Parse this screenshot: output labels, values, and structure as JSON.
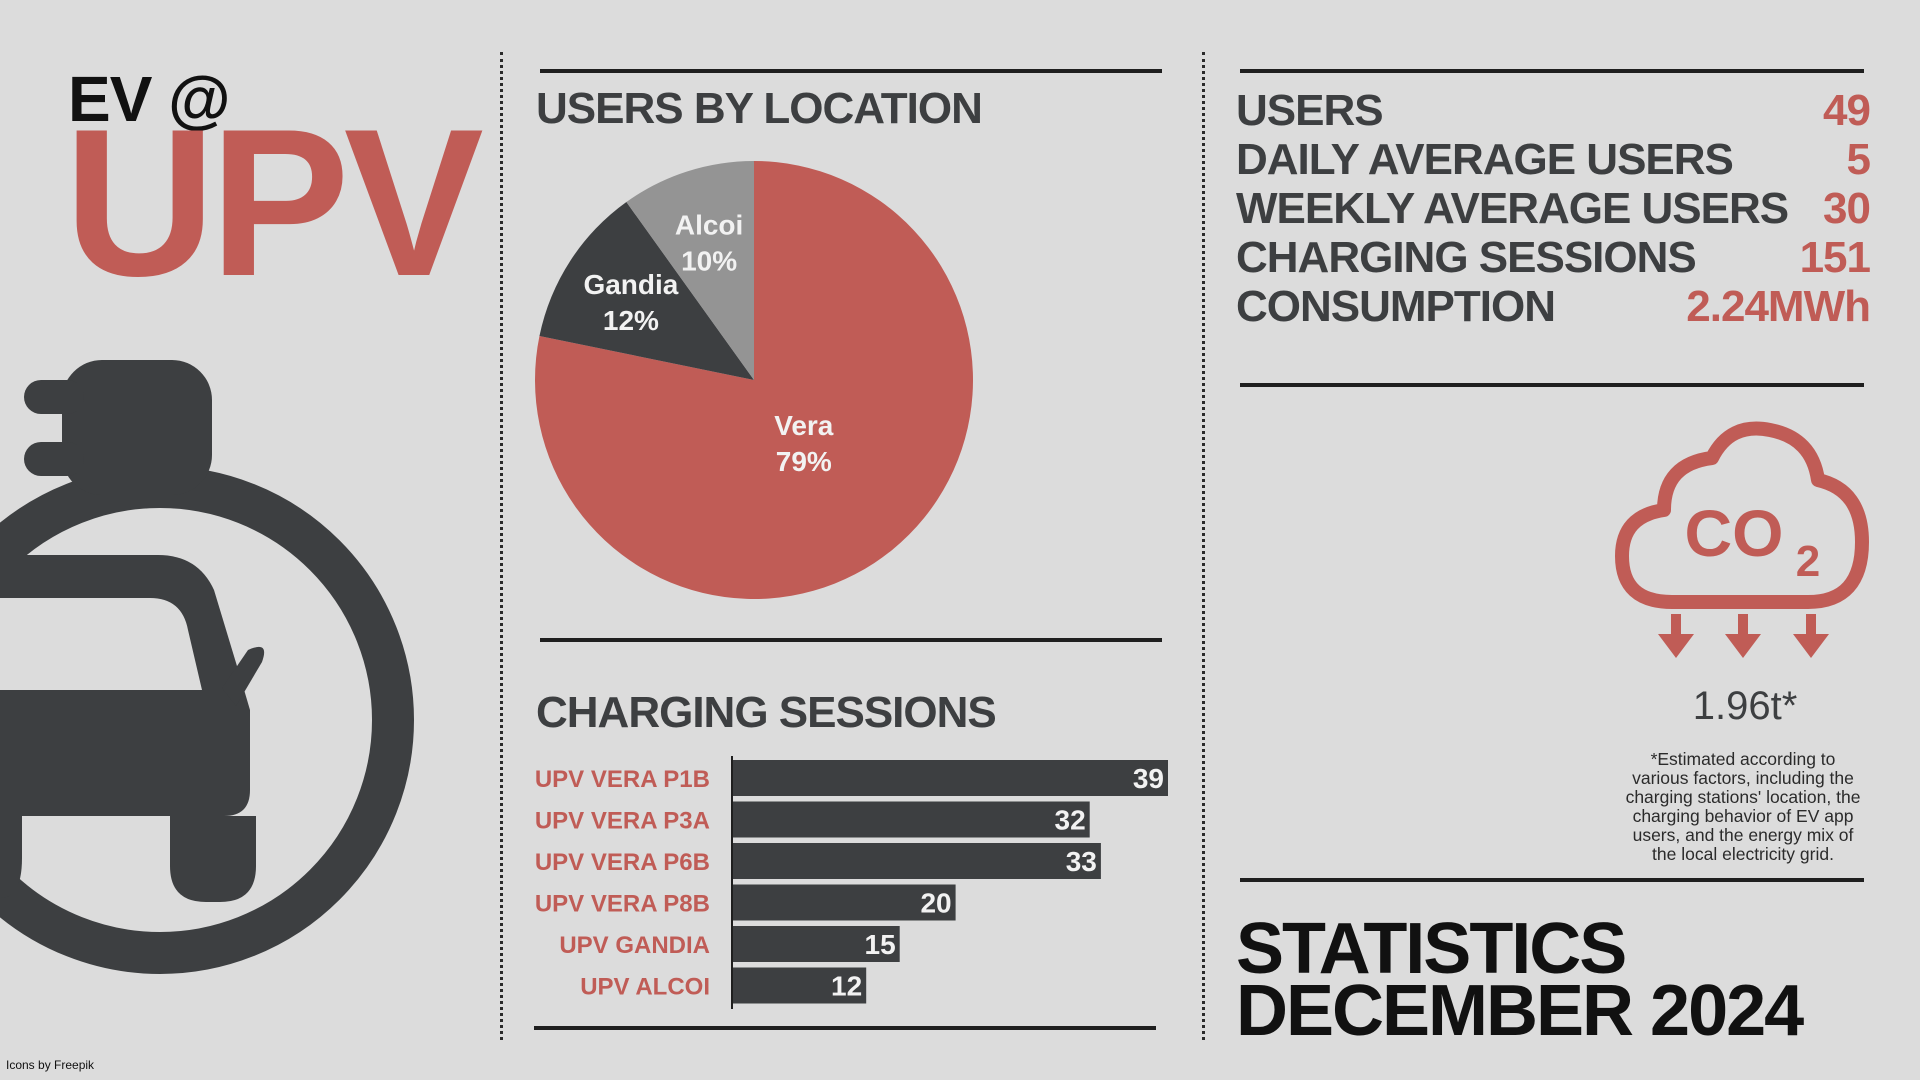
{
  "brand": {
    "prefix": "EV @",
    "name": "UPV"
  },
  "credit": "Icons by Freepik",
  "colors": {
    "accent": "#c05c56",
    "dark": "#3d3f41",
    "light_gray": "#949494",
    "background": "#dcdcdc"
  },
  "icons": {
    "plug": "ev-plug-car-icon",
    "co2": "co2-cloud-icon"
  },
  "pie_section": {
    "title": "USERS BY LOCATION"
  },
  "bar_section": {
    "title": "CHARGING SESSIONS"
  },
  "chart_data": [
    {
      "type": "pie",
      "title": "USERS BY LOCATION",
      "labels": [
        "Vera",
        "Gandia",
        "Alcoi"
      ],
      "values": [
        79,
        12,
        10
      ],
      "display": [
        "79%",
        "12%",
        "10%"
      ],
      "colors": [
        "#c05c56",
        "#3d3f41",
        "#949494"
      ]
    },
    {
      "type": "bar",
      "orientation": "horizontal",
      "title": "CHARGING SESSIONS",
      "categories": [
        "UPV VERA P1B",
        "UPV VERA P3A",
        "UPV VERA P6B",
        "UPV VERA P8B",
        "UPV GANDIA",
        "UPV ALCOI"
      ],
      "values": [
        39,
        32,
        33,
        20,
        15,
        12
      ],
      "xlim": [
        0,
        39
      ],
      "grid": false
    }
  ],
  "stats": [
    {
      "label": "USERS",
      "value": "49"
    },
    {
      "label": "DAILY AVERAGE USERS",
      "value": "5"
    },
    {
      "label": "WEEKLY AVERAGE USERS",
      "value": "30"
    },
    {
      "label": "CHARGING SESSIONS",
      "value": "151"
    },
    {
      "label": "CONSUMPTION",
      "value": "2.24MWh"
    }
  ],
  "co2": {
    "icon_text": "CO",
    "icon_sub": "2",
    "value": "1.96t*",
    "note_lines": [
      "*Estimated according to",
      "various factors, including the",
      "charging stations' location, the",
      "charging behavior of EV app",
      "users, and the energy mix of",
      "the local electricity grid."
    ]
  },
  "footer": {
    "line1": "STATISTICS",
    "line2": "DECEMBER 2024"
  }
}
